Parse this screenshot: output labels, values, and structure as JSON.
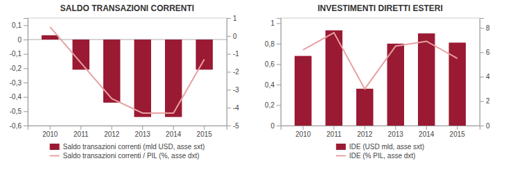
{
  "chart_data": [
    {
      "type": "bar",
      "title": "SALDO TRANSAZIONI CORRENTI",
      "categories": [
        "2010",
        "2011",
        "2012",
        "2013",
        "2014",
        "2015"
      ],
      "series": [
        {
          "name": "Saldo transazioni correnti (mld USD, asse sxt)",
          "type": "bar",
          "color": "#9b1a33",
          "values": [
            0.03,
            -0.21,
            -0.44,
            -0.54,
            -0.54,
            -0.21
          ]
        },
        {
          "name": "Saldo transazioni correnti / PIL (%, asse dxt)",
          "type": "line",
          "color": "#e8a0a0",
          "axis": "y2",
          "values": [
            0.5,
            -1.5,
            -3.5,
            -4.3,
            -4.3,
            -1.3
          ]
        }
      ],
      "ylim": [
        -0.6,
        0.15
      ],
      "yticks": [
        {
          "value": 0.1,
          "label": "0,1"
        },
        0,
        {
          "value": -0.1,
          "label": "-0,1"
        },
        {
          "value": -0.2,
          "label": "-0,2"
        },
        {
          "value": -0.3,
          "label": "-0,3"
        },
        {
          "value": -0.4,
          "label": "-0,4"
        },
        {
          "value": -0.5,
          "label": "-0,5"
        },
        {
          "value": -0.6,
          "label": "-0,6"
        }
      ],
      "y2lim": [
        -5,
        1
      ],
      "y2ticks": [
        1,
        0,
        -1,
        -2,
        -3,
        -4,
        -5
      ],
      "grid": false,
      "legend": "bottom"
    },
    {
      "type": "bar",
      "title": "INVESTIMENTI DIRETTI ESTERI",
      "categories": [
        "2010",
        "2011",
        "2012",
        "2013",
        "2014",
        "2015"
      ],
      "series": [
        {
          "name": "IDE (USD mld, asse sxt)",
          "type": "bar",
          "color": "#9b1a33",
          "values": [
            0.68,
            0.93,
            0.36,
            0.8,
            0.9,
            0.81
          ]
        },
        {
          "name": "IDE (% PIL, asse dxt)",
          "type": "line",
          "color": "#e8a0a0",
          "axis": "y2",
          "values": [
            6.2,
            7.6,
            3.0,
            6.5,
            6.9,
            5.5
          ]
        }
      ],
      "ylim": [
        0,
        1.05
      ],
      "yticks": [
        0,
        {
          "value": 0.2,
          "label": "0,2"
        },
        {
          "value": 0.4,
          "label": "0,4"
        },
        {
          "value": 0.6,
          "label": "0,6"
        },
        {
          "value": 0.8,
          "label": "0,8"
        },
        1
      ],
      "y2lim": [
        0,
        8.8
      ],
      "y2ticks": [
        0,
        2,
        4,
        6,
        8
      ],
      "grid": false,
      "legend": "bottom"
    }
  ]
}
